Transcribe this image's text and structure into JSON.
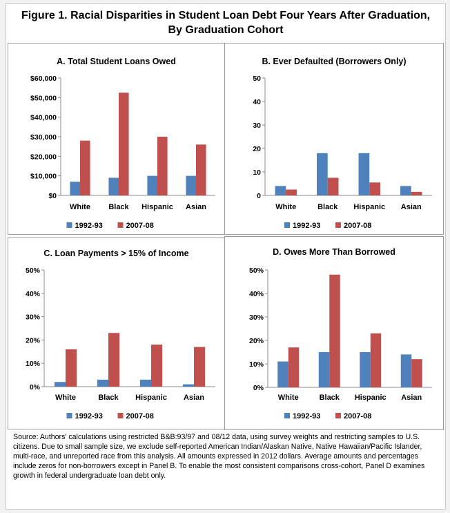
{
  "title_line1": "Figure 1. Racial Disparities in Student Loan Debt Four Years After Graduation,",
  "title_line2": "By Graduation Cohort",
  "colors": {
    "s1": "#4f81bd",
    "s2": "#c0504d"
  },
  "chart_data": [
    {
      "id": "A",
      "type": "bar",
      "title": "A. Total Student Loans Owed",
      "categories": [
        "White",
        "Black",
        "Hispanic",
        "Asian"
      ],
      "series": [
        {
          "name": "1992-93",
          "values": [
            7000,
            9000,
            10000,
            10000
          ]
        },
        {
          "name": "2007-08",
          "values": [
            28000,
            52500,
            30000,
            26000
          ]
        }
      ],
      "ylim": [
        0,
        60000
      ],
      "yticks": [
        0,
        10000,
        20000,
        30000,
        40000,
        50000,
        60000
      ],
      "ytick_labels": [
        "$0",
        "$10,000",
        "$20,000",
        "$30,000",
        "$40,000",
        "$50,000",
        "$60,000"
      ],
      "legend": "bottom"
    },
    {
      "id": "B",
      "type": "bar",
      "title": "B. Ever Defaulted (Borrowers Only)",
      "categories": [
        "White",
        "Black",
        "Hispanic",
        "Asian"
      ],
      "series": [
        {
          "name": "1992-93",
          "values": [
            4,
            18,
            18,
            4
          ]
        },
        {
          "name": "2007-08",
          "values": [
            2.5,
            7.5,
            5.5,
            1.5
          ]
        }
      ],
      "ylim": [
        0,
        50
      ],
      "yticks": [
        0,
        10,
        20,
        30,
        40,
        50
      ],
      "ytick_labels": [
        "0",
        "10",
        "20",
        "30",
        "40",
        "50"
      ],
      "legend": "bottom"
    },
    {
      "id": "C",
      "type": "bar",
      "title": "C. Loan Payments > 15% of Income",
      "categories": [
        "White",
        "Black",
        "Hispanic",
        "Asian"
      ],
      "series": [
        {
          "name": "1992-93",
          "values": [
            2,
            3,
            3,
            1
          ]
        },
        {
          "name": "2007-08",
          "values": [
            16,
            23,
            18,
            17
          ]
        }
      ],
      "ylim": [
        0,
        50
      ],
      "yticks": [
        0,
        10,
        20,
        30,
        40,
        50
      ],
      "ytick_labels": [
        "0%",
        "10%",
        "20%",
        "30%",
        "40%",
        "50%"
      ],
      "legend": "bottom"
    },
    {
      "id": "D",
      "type": "bar",
      "title": "D. Owes More Than Borrowed",
      "categories": [
        "White",
        "Black",
        "Hispanic",
        "Asian"
      ],
      "series": [
        {
          "name": "1992-93",
          "values": [
            11,
            15,
            15,
            14
          ]
        },
        {
          "name": "2007-08",
          "values": [
            17,
            48,
            23,
            12
          ]
        }
      ],
      "ylim": [
        0,
        50
      ],
      "yticks": [
        0,
        10,
        20,
        30,
        40,
        50
      ],
      "ytick_labels": [
        "0%",
        "10%",
        "20%",
        "30%",
        "40%",
        "50%"
      ],
      "legend": "bottom"
    }
  ],
  "source": "Source: Authors' calculations using restricted B&B:93/97 and 08/12 data, using survey weights and restricting samples to U.S. citizens. Due to small sample size, we exclude self-reported American Indian/Alaskan Native, Native Hawaiian/Pacific Islander, multi-race, and unreported race from this analysis. All amounts expressed in 2012 dollars. Average amounts and percentages include zeros for non-borrowers except in Panel B. To enable the most consistent comparisons cross-cohort, Panel D examines growth in federal undergraduate loan debt only."
}
